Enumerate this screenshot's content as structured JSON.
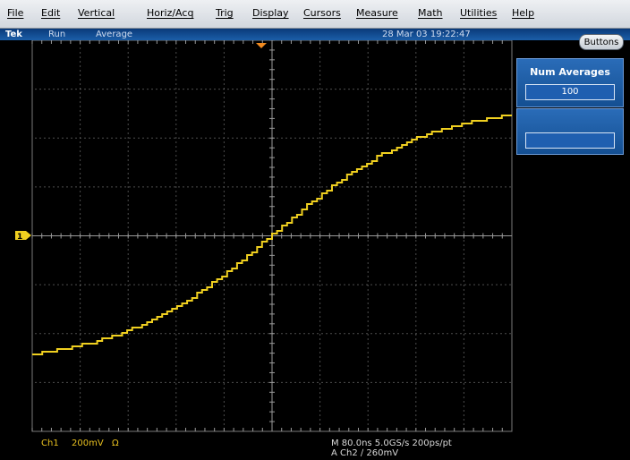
{
  "menu": {
    "items": [
      "File",
      "Edit",
      "Vertical",
      "Horiz/Acq",
      "Trig",
      "Display",
      "Cursors",
      "Measure",
      "Math",
      "Utilities",
      "Help"
    ]
  },
  "status": {
    "brand": "Tek",
    "run_state": "Run",
    "mode": "Average",
    "datetime": "28 Mar 03 19:22:47"
  },
  "panel": {
    "buttons_label": "Buttons",
    "num_averages_label": "Num Averages",
    "num_averages_value": "100",
    "second_value": ""
  },
  "waveform": {
    "channel_marker": "1",
    "trigger_marker_icon": "trigger-position-icon",
    "color": "#f0d020"
  },
  "readout": {
    "channel": "Ch1",
    "scale": "200mV",
    "coupling_symbol": "Ω",
    "horizontal": "M 80.0ns 5.0GS/s  200ps/pt",
    "trigger": "A  Ch2  ∕  260mV"
  },
  "colors": {
    "menubar": "#dde1e6",
    "status_strip": "#1b5ea8",
    "panel_box": "#1f5fb0",
    "trace": "#f0d020",
    "grid": "#9a9a9a"
  }
}
